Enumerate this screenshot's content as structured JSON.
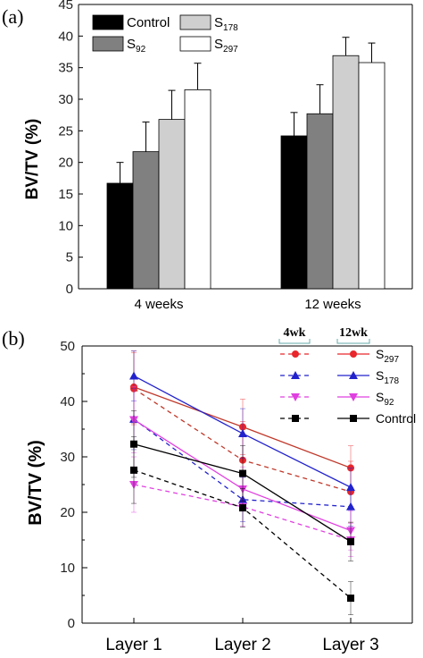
{
  "panels": {
    "a": "(a)",
    "b": "(b)"
  },
  "chart_data": [
    {
      "type": "bar",
      "ylabel": "BV/TV (%)",
      "ylim": [
        0,
        45
      ],
      "yticks": [
        "0",
        "5",
        "10",
        "15",
        "20",
        "25",
        "30",
        "35",
        "40",
        "45"
      ],
      "categories": [
        "4 weeks",
        "12 weeks"
      ],
      "legend_placement": "top-left",
      "series": [
        {
          "name": "Control",
          "label_main": "Control",
          "label_sub": "",
          "color": "#000000",
          "values": [
            16.7,
            24.2
          ],
          "errors": [
            3.3,
            3.7
          ]
        },
        {
          "name": "S92",
          "label_main": "S",
          "label_sub": "92",
          "color": "#808080",
          "values": [
            21.7,
            27.7
          ],
          "errors": [
            4.7,
            4.6
          ]
        },
        {
          "name": "S178",
          "label_main": "S",
          "label_sub": "178",
          "color": "#cfcfcf",
          "values": [
            26.8,
            36.9
          ],
          "errors": [
            4.6,
            2.9
          ]
        },
        {
          "name": "S297",
          "label_main": "S",
          "label_sub": "297",
          "color": "#ffffff",
          "values": [
            31.5,
            35.8
          ],
          "errors": [
            4.2,
            3.1
          ]
        }
      ]
    },
    {
      "type": "line",
      "ylabel": "BV/TV (%)",
      "ylim": [
        0,
        50
      ],
      "yticks": [
        "0",
        "10",
        "20",
        "30",
        "40",
        "50"
      ],
      "categories": [
        "Layer 1",
        "Layer 2",
        "Layer 3"
      ],
      "legend_placement": "top-right",
      "legend_headers": {
        "dashed": "4wk",
        "solid": "12wk"
      },
      "legend": [
        {
          "main": "S",
          "sub": "297",
          "color": "#e8262b",
          "marker": "circle"
        },
        {
          "main": "S",
          "sub": "178",
          "color": "#2222cc",
          "marker": "triangle"
        },
        {
          "main": "S",
          "sub": "92",
          "color": "#e040e0",
          "marker": "triangle-down"
        },
        {
          "main": "Control",
          "sub": "",
          "color": "#000000",
          "marker": "square"
        }
      ],
      "series": [
        {
          "name": "S297 4wk",
          "style": "dashed",
          "color": "#c0392b",
          "marker": "circle",
          "marker_color": "#e8262b",
          "values": [
            42.3,
            29.4,
            23.7
          ],
          "errors": [
            6.5,
            7.0,
            5.5
          ]
        },
        {
          "name": "S297 12wk",
          "style": "solid",
          "color": "#c0392b",
          "marker": "circle",
          "marker_color": "#e8262b",
          "values": [
            42.6,
            35.4,
            28.0
          ],
          "errors": [
            6.5,
            5.0,
            4.0
          ]
        },
        {
          "name": "S178 4wk",
          "style": "dashed",
          "color": "#2222cc",
          "marker": "triangle",
          "marker_color": "#2222cc",
          "values": [
            36.8,
            22.3,
            21.0
          ],
          "errors": [
            5.5,
            4.0,
            3.5
          ]
        },
        {
          "name": "S178 12wk",
          "style": "solid",
          "color": "#2222cc",
          "marker": "triangle",
          "marker_color": "#2222cc",
          "values": [
            44.6,
            34.2,
            24.5
          ],
          "errors": [
            4.5,
            4.5,
            3.5
          ]
        },
        {
          "name": "S92 4wk",
          "style": "dashed",
          "color": "#e040e0",
          "marker": "triangle-down",
          "marker_color": "#e040e0",
          "values": [
            25.0,
            21.0,
            15.0
          ],
          "errors": [
            5.0,
            3.5,
            3.0
          ]
        },
        {
          "name": "S92 12wk",
          "style": "solid",
          "color": "#e040e0",
          "marker": "triangle-down",
          "marker_color": "#e040e0",
          "values": [
            36.7,
            24.2,
            16.7
          ],
          "errors": [
            6.0,
            4.0,
            3.5
          ]
        },
        {
          "name": "Control 4wk",
          "style": "dashed",
          "color": "#000000",
          "marker": "square",
          "marker_color": "#000000",
          "values": [
            27.6,
            20.8,
            4.5
          ],
          "errors": [
            6.0,
            3.5,
            3.0
          ]
        },
        {
          "name": "Control 12wk",
          "style": "solid",
          "color": "#000000",
          "marker": "square",
          "marker_color": "#000000",
          "values": [
            32.3,
            27.0,
            14.7
          ],
          "errors": [
            6.0,
            5.0,
            3.5
          ]
        }
      ]
    }
  ]
}
